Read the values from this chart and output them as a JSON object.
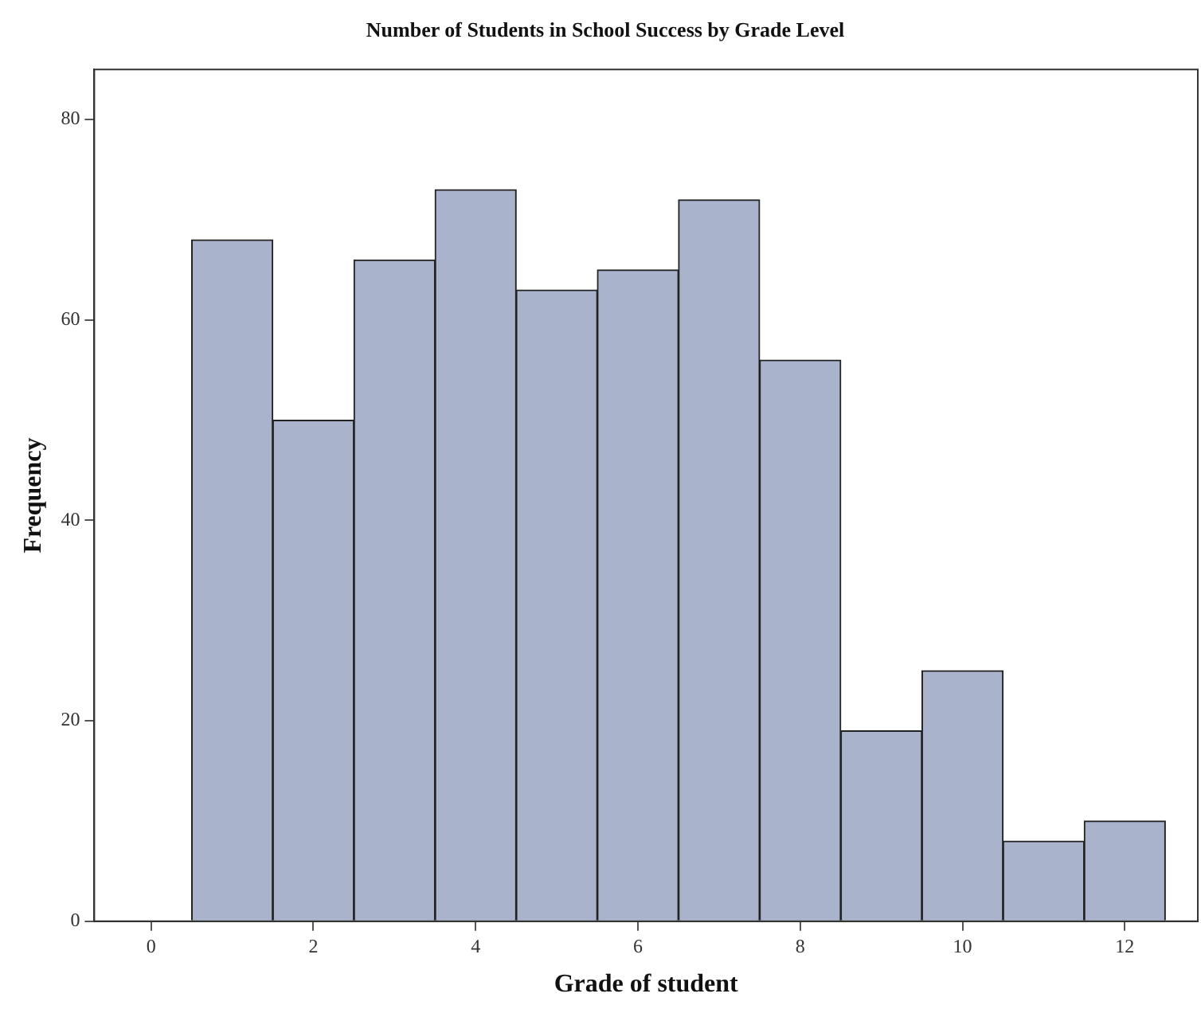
{
  "chart_data": {
    "type": "histogram",
    "title": "Number of Students in School Success by Grade Level",
    "xlabel": "Grade of student",
    "ylabel": "Frequency",
    "bins": [
      0.5,
      1.5,
      2.5,
      3.5,
      4.5,
      5.5,
      6.5,
      7.5,
      8.5,
      9.5,
      10.5,
      11.5,
      12.5
    ],
    "values": [
      68,
      50,
      66,
      73,
      63,
      65,
      72,
      56,
      19,
      25,
      8,
      10
    ],
    "color": "#a9b4cc",
    "xlim": [
      -0.7,
      12.9
    ],
    "xticks": [
      0,
      2,
      4,
      6,
      8,
      10,
      12
    ],
    "ylim": [
      0,
      85
    ],
    "yticks": [
      0,
      20,
      40,
      60,
      80
    ],
    "grid": false,
    "legend": false
  }
}
